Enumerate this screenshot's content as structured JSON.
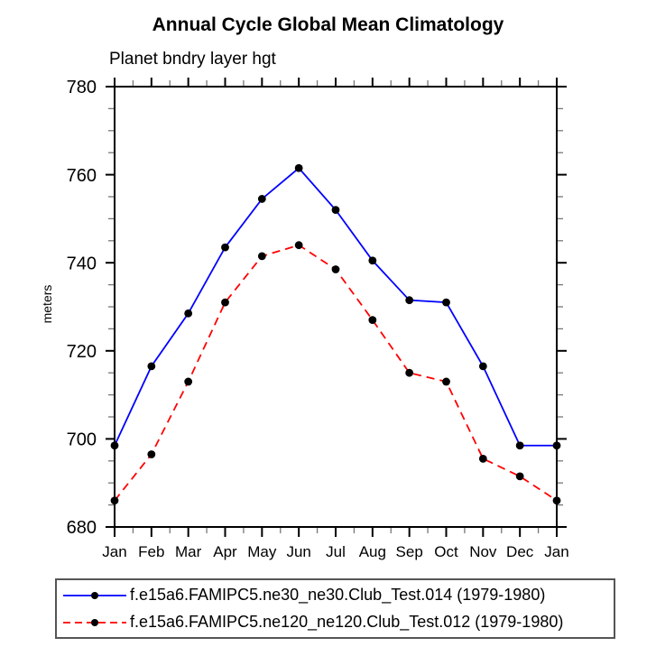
{
  "chart_data": {
    "type": "line",
    "title": "Annual Cycle Global Mean Climatology",
    "subtitle": "Planet bndry layer hgt",
    "ylabel": "meters",
    "xlabel": "",
    "categories": [
      "Jan",
      "Feb",
      "Mar",
      "Apr",
      "May",
      "Jun",
      "Jul",
      "Aug",
      "Sep",
      "Oct",
      "Nov",
      "Dec",
      "Jan"
    ],
    "ylim": [
      680,
      780
    ],
    "ytick_major_step": 20,
    "ytick_minor_step": 5,
    "x_minor_ticks_between_months": 1,
    "grid": false,
    "legend_position": "bottom-box",
    "axis_color": "#000000",
    "minor_tick_color": "#777777",
    "marker": {
      "shape": "circle",
      "color": "#000000",
      "radius": 4.4
    },
    "series": [
      {
        "name": "f.e15a6.FAMIPC5.ne30_ne30.Club_Test.014 (1979-1980)",
        "color": "#0000ff",
        "line_style": "solid",
        "values": [
          698.5,
          716.5,
          728.5,
          743.5,
          754.5,
          761.5,
          752.0,
          740.5,
          731.5,
          731.0,
          716.5,
          698.5,
          698.5
        ]
      },
      {
        "name": "f.e15a6.FAMIPC5.ne120_ne120.Club_Test.012 (1979-1980)",
        "color": "#ff0000",
        "line_style": "dashed",
        "values": [
          686.0,
          696.5,
          713.0,
          731.0,
          741.5,
          744.0,
          738.5,
          727.0,
          715.0,
          713.0,
          695.5,
          691.5,
          686.0
        ]
      }
    ]
  }
}
